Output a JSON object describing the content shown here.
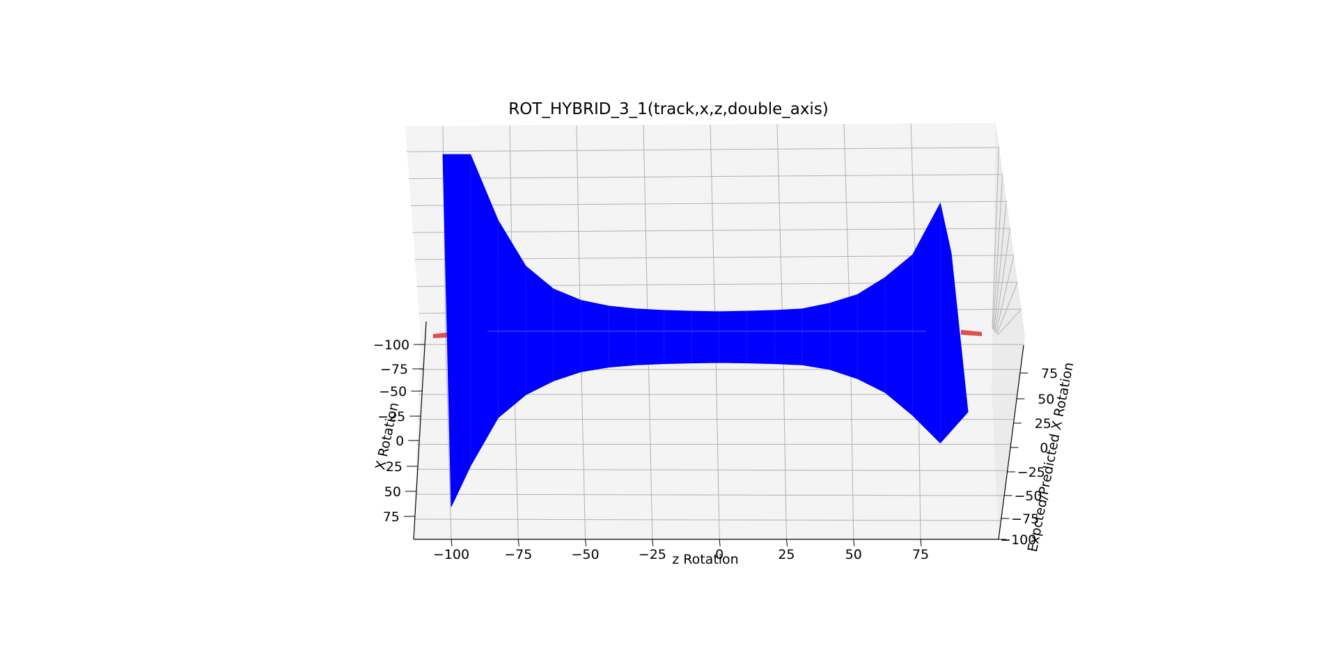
{
  "chart_data": {
    "type": "surface3d",
    "title": "ROT_HYBRID_3_1(track,x,z,double_axis)",
    "x_axis": {
      "label": "z Rotation",
      "ticks": [
        "−100",
        "−75",
        "−50",
        "−25",
        "0",
        "25",
        "50",
        "75"
      ],
      "range": [
        -110,
        110
      ]
    },
    "y_axis": {
      "label": "X Rotation",
      "ticks": [
        "−100",
        "−75",
        "−50",
        "−25",
        "0",
        "25",
        "50",
        "75"
      ],
      "range": [
        -110,
        95
      ]
    },
    "z_axis": {
      "label": "Expcted/Predicted X Rotation",
      "ticks": [
        "−100",
        "−75",
        "−50",
        "−25",
        "0",
        "25",
        "50",
        "75"
      ],
      "range": [
        -100,
        95
      ]
    },
    "grid": true,
    "series": [
      {
        "color": "#0000ff",
        "profile_z": [
          -100,
          -90,
          -80,
          -70,
          -60,
          -50,
          -40,
          -30,
          -20,
          -10,
          0,
          10,
          20,
          30,
          40,
          50,
          60,
          70,
          80,
          90
        ],
        "upper_edge_y": [
          -110,
          -98,
          -72,
          -56,
          -48,
          -44,
          -42,
          -41,
          -40.5,
          -40.2,
          -40,
          -40.2,
          -40.5,
          -41,
          -43,
          -46,
          -52,
          -60,
          -78,
          -85
        ],
        "lower_edge_y": [
          80,
          55,
          34,
          24,
          18,
          14,
          12,
          11,
          10.5,
          10.2,
          10,
          10.2,
          10.5,
          11,
          13,
          17,
          23,
          33,
          45,
          52
        ]
      },
      {
        "color": "#d62728",
        "note_visible_only_as_thin_edge": true,
        "profile_z": [
          -100,
          90
        ],
        "upper_edge_y": [
          -15,
          -15
        ],
        "lower_edge_y": [
          -15,
          -15
        ]
      }
    ]
  }
}
